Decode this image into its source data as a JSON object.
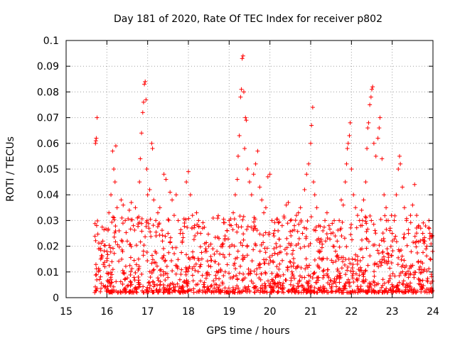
{
  "chart_data": {
    "type": "scatter",
    "title": "Day 181 of 2020, Rate Of TEC Index for receiver p802",
    "xlabel": "GPS time / hours",
    "ylabel": "ROTI / TECUs",
    "xlim": [
      15,
      24
    ],
    "ylim": [
      0,
      0.1
    ],
    "x_ticks": [
      15,
      16,
      17,
      18,
      19,
      20,
      21,
      22,
      23,
      24
    ],
    "x_tick_labels": [
      "15",
      "16",
      "17",
      "18",
      "19",
      "20",
      "21",
      "22",
      "23",
      "24"
    ],
    "y_ticks": [
      0,
      0.01,
      0.02,
      0.03,
      0.04,
      0.05,
      0.06,
      0.07,
      0.08,
      0.09,
      0.1
    ],
    "y_tick_labels": [
      "0",
      "0.01",
      "0.02",
      "0.03",
      "0.04",
      "0.05",
      "0.06",
      "0.07",
      "0.08",
      "0.09",
      "0.1"
    ],
    "grid": true,
    "marker": "+",
    "series": [
      {
        "name": "ROTI",
        "color": "#ff0000",
        "points": [
          [
            15.73,
            0.061
          ],
          [
            15.74,
            0.062
          ],
          [
            15.76,
            0.07
          ],
          [
            15.72,
            0.06
          ],
          [
            15.8,
            0.019
          ],
          [
            15.85,
            0.015
          ],
          [
            15.9,
            0.022
          ],
          [
            15.95,
            0.012
          ],
          [
            16.0,
            0.018
          ],
          [
            16.05,
            0.033
          ],
          [
            16.1,
            0.04
          ],
          [
            16.14,
            0.057
          ],
          [
            16.17,
            0.05
          ],
          [
            16.2,
            0.045
          ],
          [
            16.22,
            0.059
          ],
          [
            16.25,
            0.035
          ],
          [
            16.3,
            0.026
          ],
          [
            16.35,
            0.038
          ],
          [
            16.4,
            0.036
          ],
          [
            16.45,
            0.03
          ],
          [
            16.5,
            0.022
          ],
          [
            16.55,
            0.034
          ],
          [
            16.6,
            0.037
          ],
          [
            16.65,
            0.028
          ],
          [
            16.7,
            0.035
          ],
          [
            16.75,
            0.031
          ],
          [
            16.8,
            0.045
          ],
          [
            16.82,
            0.054
          ],
          [
            16.85,
            0.064
          ],
          [
            16.88,
            0.072
          ],
          [
            16.9,
            0.076
          ],
          [
            16.92,
            0.083
          ],
          [
            16.94,
            0.084
          ],
          [
            16.96,
            0.077
          ],
          [
            16.98,
            0.05
          ],
          [
            17.0,
            0.04
          ],
          [
            17.05,
            0.042
          ],
          [
            17.1,
            0.06
          ],
          [
            17.12,
            0.058
          ],
          [
            17.15,
            0.038
          ],
          [
            17.2,
            0.03
          ],
          [
            17.25,
            0.033
          ],
          [
            17.3,
            0.035
          ],
          [
            17.4,
            0.048
          ],
          [
            17.45,
            0.046
          ],
          [
            17.5,
            0.025
          ],
          [
            17.55,
            0.041
          ],
          [
            17.6,
            0.038
          ],
          [
            17.65,
            0.032
          ],
          [
            17.7,
            0.04
          ],
          [
            17.75,
            0.03
          ],
          [
            17.8,
            0.025
          ],
          [
            17.85,
            0.022
          ],
          [
            17.95,
            0.045
          ],
          [
            18.0,
            0.049
          ],
          [
            18.05,
            0.04
          ],
          [
            18.1,
            0.032
          ],
          [
            18.15,
            0.028
          ],
          [
            18.2,
            0.033
          ],
          [
            18.25,
            0.03
          ],
          [
            18.3,
            0.025
          ],
          [
            18.35,
            0.027
          ],
          [
            18.4,
            0.021
          ],
          [
            18.45,
            0.018
          ],
          [
            18.5,
            0.02
          ],
          [
            18.55,
            0.016
          ],
          [
            18.6,
            0.019
          ],
          [
            18.65,
            0.014
          ],
          [
            18.7,
            0.018
          ],
          [
            18.75,
            0.023
          ],
          [
            18.8,
            0.02
          ],
          [
            18.85,
            0.021
          ],
          [
            18.9,
            0.024
          ],
          [
            18.95,
            0.026
          ],
          [
            19.0,
            0.03
          ],
          [
            19.05,
            0.028
          ],
          [
            19.1,
            0.033
          ],
          [
            19.15,
            0.04
          ],
          [
            19.2,
            0.046
          ],
          [
            19.22,
            0.055
          ],
          [
            19.25,
            0.063
          ],
          [
            19.28,
            0.078
          ],
          [
            19.3,
            0.081
          ],
          [
            19.32,
            0.093
          ],
          [
            19.34,
            0.094
          ],
          [
            19.36,
            0.08
          ],
          [
            19.38,
            0.058
          ],
          [
            19.4,
            0.07
          ],
          [
            19.42,
            0.069
          ],
          [
            19.45,
            0.05
          ],
          [
            19.5,
            0.045
          ],
          [
            19.55,
            0.04
          ],
          [
            19.6,
            0.048
          ],
          [
            19.65,
            0.052
          ],
          [
            19.7,
            0.057
          ],
          [
            19.75,
            0.043
          ],
          [
            19.8,
            0.038
          ],
          [
            19.85,
            0.033
          ],
          [
            19.9,
            0.035
          ],
          [
            19.95,
            0.047
          ],
          [
            20.0,
            0.048
          ],
          [
            20.05,
            0.03
          ],
          [
            20.1,
            0.024
          ],
          [
            20.15,
            0.021
          ],
          [
            20.2,
            0.026
          ],
          [
            20.25,
            0.02
          ],
          [
            20.3,
            0.028
          ],
          [
            20.35,
            0.031
          ],
          [
            20.4,
            0.036
          ],
          [
            20.45,
            0.037
          ],
          [
            20.5,
            0.03
          ],
          [
            20.55,
            0.026
          ],
          [
            20.6,
            0.028
          ],
          [
            20.65,
            0.032
          ],
          [
            20.7,
            0.033
          ],
          [
            20.75,
            0.035
          ],
          [
            20.8,
            0.025
          ],
          [
            20.85,
            0.042
          ],
          [
            20.9,
            0.048
          ],
          [
            20.95,
            0.052
          ],
          [
            21.0,
            0.06
          ],
          [
            21.02,
            0.067
          ],
          [
            21.05,
            0.074
          ],
          [
            21.07,
            0.045
          ],
          [
            21.1,
            0.04
          ],
          [
            21.15,
            0.035
          ],
          [
            21.2,
            0.028
          ],
          [
            21.25,
            0.022
          ],
          [
            21.3,
            0.026
          ],
          [
            21.35,
            0.03
          ],
          [
            21.4,
            0.033
          ],
          [
            21.45,
            0.028
          ],
          [
            21.5,
            0.025
          ],
          [
            21.55,
            0.02
          ],
          [
            21.6,
            0.024
          ],
          [
            21.65,
            0.022
          ],
          [
            21.7,
            0.03
          ],
          [
            21.75,
            0.038
          ],
          [
            21.8,
            0.036
          ],
          [
            21.85,
            0.045
          ],
          [
            21.88,
            0.052
          ],
          [
            21.9,
            0.058
          ],
          [
            21.92,
            0.06
          ],
          [
            21.95,
            0.063
          ],
          [
            21.97,
            0.068
          ],
          [
            22.0,
            0.05
          ],
          [
            22.05,
            0.04
          ],
          [
            22.1,
            0.035
          ],
          [
            22.15,
            0.032
          ],
          [
            22.2,
            0.03
          ],
          [
            22.25,
            0.034
          ],
          [
            22.3,
            0.038
          ],
          [
            22.35,
            0.045
          ],
          [
            22.38,
            0.058
          ],
          [
            22.4,
            0.066
          ],
          [
            22.42,
            0.068
          ],
          [
            22.45,
            0.075
          ],
          [
            22.48,
            0.078
          ],
          [
            22.5,
            0.081
          ],
          [
            22.52,
            0.082
          ],
          [
            22.55,
            0.06
          ],
          [
            22.6,
            0.055
          ],
          [
            22.65,
            0.062
          ],
          [
            22.68,
            0.066
          ],
          [
            22.7,
            0.07
          ],
          [
            22.75,
            0.054
          ],
          [
            22.8,
            0.04
          ],
          [
            22.85,
            0.035
          ],
          [
            22.9,
            0.03
          ],
          [
            22.95,
            0.027
          ],
          [
            23.0,
            0.025
          ],
          [
            23.05,
            0.03
          ],
          [
            23.1,
            0.04
          ],
          [
            23.15,
            0.05
          ],
          [
            23.18,
            0.055
          ],
          [
            23.2,
            0.052
          ],
          [
            23.25,
            0.043
          ],
          [
            23.3,
            0.035
          ],
          [
            23.35,
            0.03
          ],
          [
            23.4,
            0.025
          ],
          [
            23.45,
            0.032
          ],
          [
            23.5,
            0.036
          ],
          [
            23.55,
            0.044
          ],
          [
            23.6,
            0.032
          ],
          [
            23.65,
            0.028
          ],
          [
            23.7,
            0.027
          ],
          [
            23.75,
            0.025
          ],
          [
            23.8,
            0.022
          ],
          [
            23.85,
            0.02
          ],
          [
            23.9,
            0.03
          ],
          [
            23.95,
            0.024
          ],
          [
            23.99,
            0.018
          ]
        ]
      }
    ]
  }
}
